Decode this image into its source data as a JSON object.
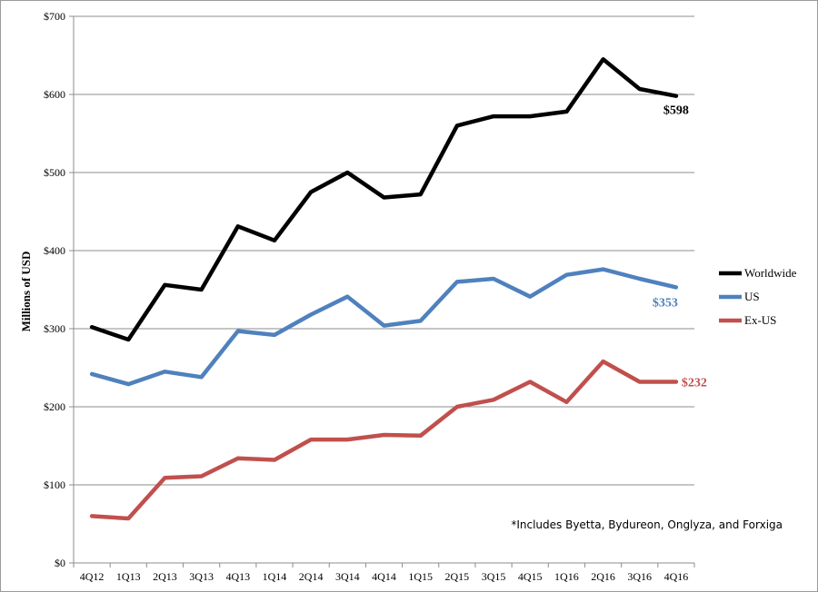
{
  "chart_data": {
    "type": "line",
    "ylabel": "Millions of USD",
    "y_tick_labels": [
      "$0",
      "$100",
      "$200",
      "$300",
      "$400",
      "$500",
      "$600",
      "$700"
    ],
    "ylim": [
      0,
      700
    ],
    "grid": "horizontal",
    "legend_position": "right",
    "categories": [
      "4Q12",
      "1Q13",
      "2Q13",
      "3Q13",
      "4Q13",
      "1Q14",
      "2Q14",
      "3Q14",
      "4Q14",
      "1Q15",
      "2Q15",
      "3Q15",
      "4Q15",
      "1Q16",
      "2Q16",
      "3Q16",
      "4Q16"
    ],
    "series": [
      {
        "name": "Worldwide",
        "color": "#000000",
        "values": [
          302,
          286,
          356,
          350,
          431,
          413,
          475,
          500,
          468,
          472,
          560,
          572,
          572,
          578,
          645,
          607,
          598
        ],
        "end_label": "$598"
      },
      {
        "name": "US",
        "color": "#4f81bd",
        "values": [
          242,
          229,
          245,
          238,
          297,
          292,
          318,
          341,
          304,
          310,
          360,
          364,
          341,
          369,
          376,
          364,
          353
        ],
        "end_label": "$353"
      },
      {
        "name": "Ex-US",
        "color": "#c0504d",
        "values": [
          60,
          57,
          109,
          111,
          134,
          132,
          158,
          158,
          164,
          163,
          200,
          209,
          232,
          206,
          258,
          232,
          232
        ],
        "end_label": "$232"
      }
    ],
    "annotation": "*Includes Byetta, Bydureon, Onglyza, and Forxiga"
  }
}
